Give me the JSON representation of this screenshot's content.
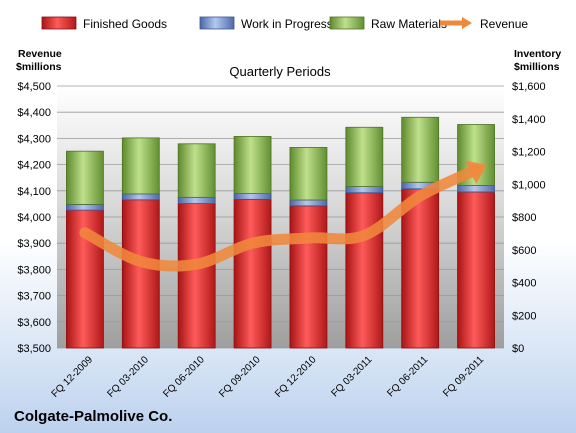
{
  "chart_data": {
    "type": "bar",
    "title": "Quarterly Periods",
    "company": "Colgate-Palmolive Co.",
    "left_axis_label": [
      "Revenue",
      "$millions"
    ],
    "right_axis_label": [
      "Inventory",
      "$millions"
    ],
    "categories": [
      "FQ 12-2009",
      "FQ 03-2010",
      "FQ 06-2010",
      "FQ 09-2010",
      "FQ 12-2010",
      "FQ 03-2011",
      "FQ 06-2011",
      "FQ 09-2011"
    ],
    "series": [
      {
        "name": "Finished Goods",
        "type": "stacked-bar",
        "axis": "right",
        "color": "#e02020",
        "values": [
          842,
          905,
          882,
          908,
          868,
          948,
          972,
          953
        ]
      },
      {
        "name": "Work in Progress",
        "type": "stacked-bar",
        "axis": "right",
        "color": "#6f8fcf",
        "values": [
          35,
          36,
          38,
          35,
          36,
          38,
          40,
          40
        ]
      },
      {
        "name": "Raw Materials",
        "type": "stacked-bar",
        "axis": "right",
        "color": "#92c05a",
        "values": [
          325,
          342,
          327,
          349,
          321,
          362,
          397,
          372
        ]
      },
      {
        "name": "Revenue",
        "type": "line",
        "axis": "left",
        "color": "#f0883c",
        "values": [
          3940,
          3830,
          3820,
          3900,
          3920,
          3930,
          4080,
          4180
        ]
      }
    ],
    "left_axis": {
      "min": 3500,
      "max": 4500,
      "step": 100,
      "ticks": [
        "$3,500",
        "$3,600",
        "$3,700",
        "$3,800",
        "$3,900",
        "$4,000",
        "$4,100",
        "$4,200",
        "$4,300",
        "$4,400",
        "$4,500"
      ]
    },
    "right_axis": {
      "min": 0,
      "max": 1600,
      "step": 200,
      "ticks": [
        "$0",
        "$200",
        "$400",
        "$600",
        "$800",
        "$1,000",
        "$1,200",
        "$1,400",
        "$1,600"
      ]
    },
    "grid": true,
    "legend_position": "top"
  }
}
